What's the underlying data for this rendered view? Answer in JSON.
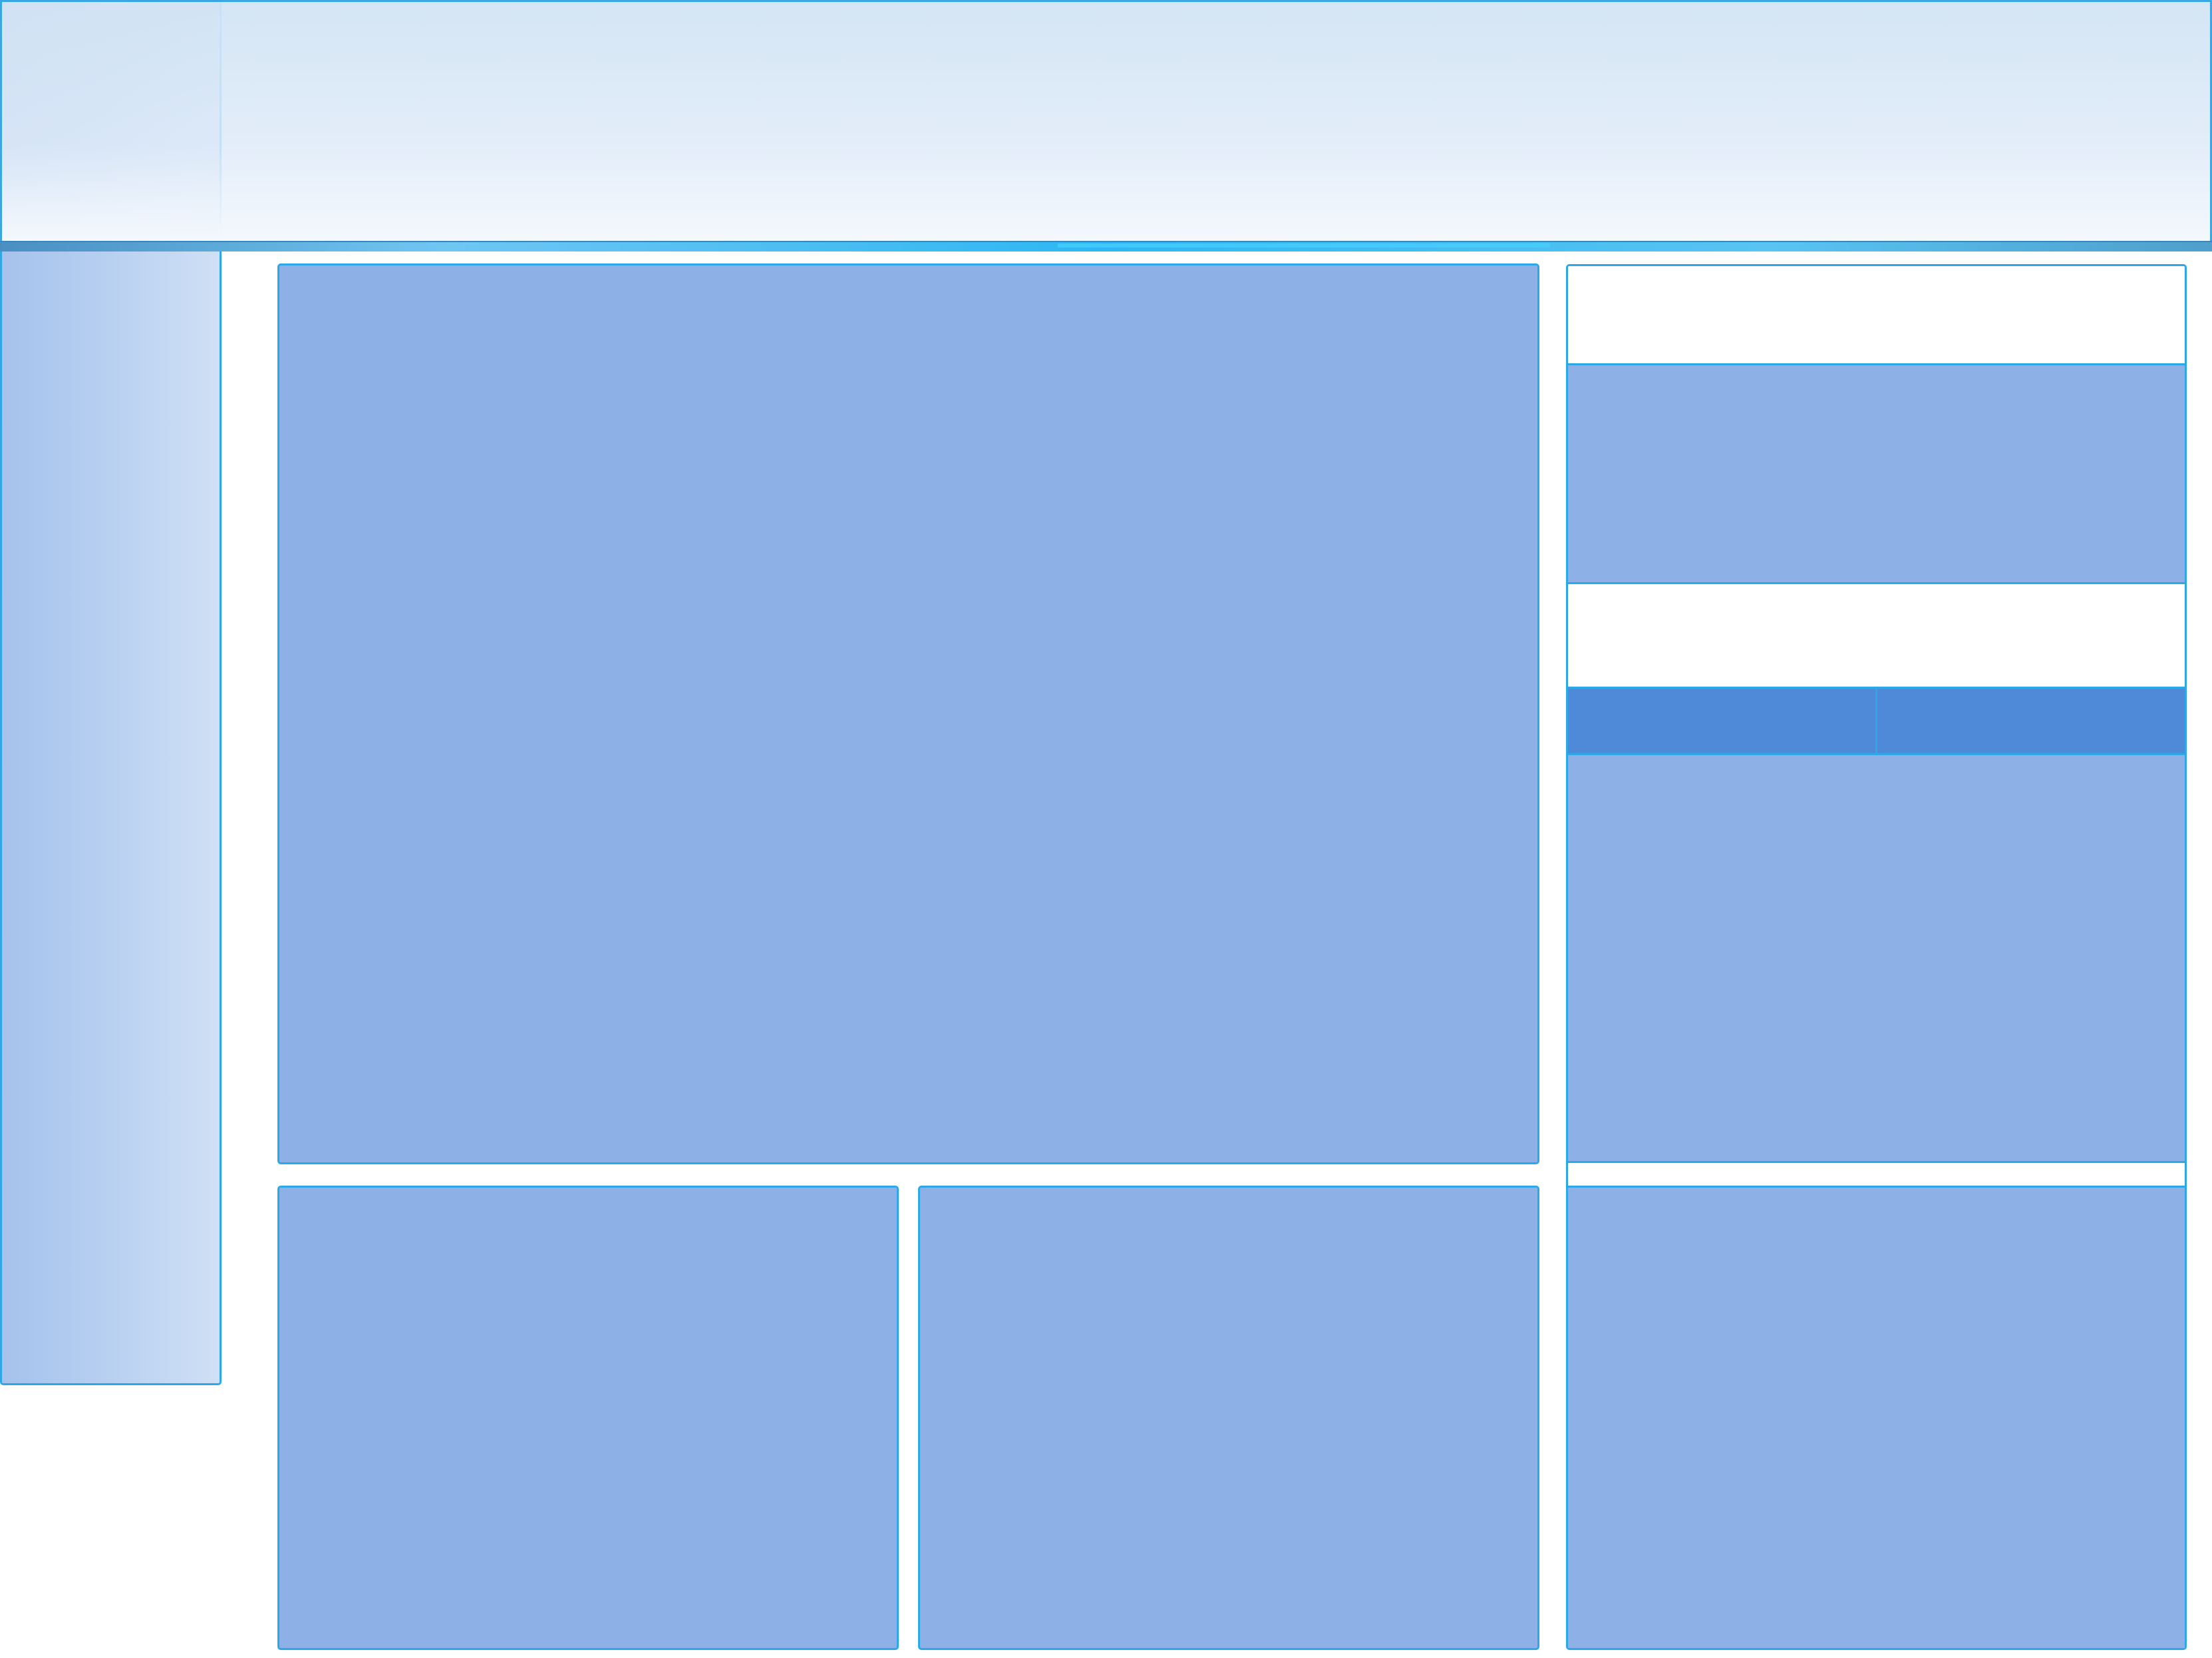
{
  "colors": {
    "accent": "#2ea7e8",
    "panel_fill": "#8db0e6",
    "tab_fill": "#4e8ad8",
    "header_bar": "#2db7f2",
    "sidebar_fill": "#b4cdf0"
  },
  "header": {},
  "sidebar": {},
  "main": {},
  "right_panel": {
    "tabs": [
      {},
      {}
    ]
  },
  "bottom": {}
}
